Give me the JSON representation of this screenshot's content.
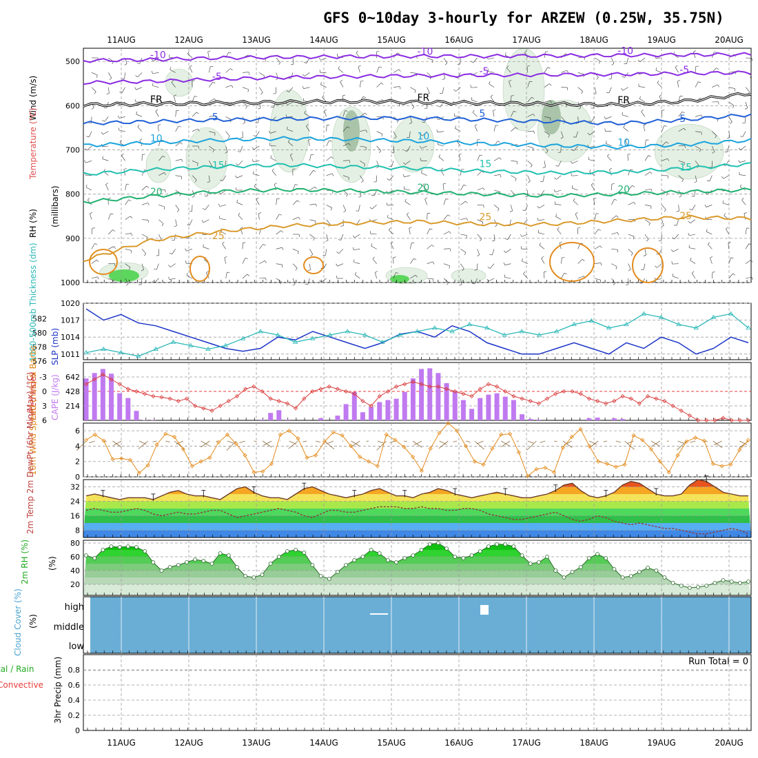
{
  "title": "GFS 0~10day 3-hourly for ARZEW (0.25W, 35.75N)",
  "date_labels": [
    "11AUG",
    "12AUG",
    "13AUG",
    "14AUG",
    "15AUG",
    "16AUG",
    "17AUG",
    "18AUG",
    "19AUG",
    "20AUG"
  ],
  "colors": {
    "isotherm_cold": "#8a2be2",
    "isotherm_mid": "#1f5fd6",
    "isotherm_warm": "#d99a2b",
    "slp": "#1a33c7",
    "thickness": "#2bb7b7",
    "cape": "#c07af0",
    "lifted_index": "#d93b3b",
    "wind": "#e38b1c",
    "rh": "#22c322",
    "cloud": "#6aaed6",
    "precip_total": "#22aa22",
    "precip_convective": "#e83b3b"
  },
  "chart_data": [
    {
      "type": "heatmap",
      "panel": "upper-air",
      "ylabel_parts": [
        "Wind (m/s)",
        "Temperature (°C)",
        "RH (%)",
        "(millibars)"
      ],
      "yticks": [
        500,
        600,
        700,
        800,
        900,
        1000
      ],
      "ylim": [
        1000,
        470
      ],
      "isotherms": [
        {
          "label": "-10",
          "pressures": [
            498,
            496,
            492,
            490,
            489,
            488,
            488,
            487,
            486,
            485,
            484
          ]
        },
        {
          "label": "-5",
          "pressures": [
            548,
            545,
            540,
            536,
            534,
            532,
            531,
            530,
            529,
            527,
            525
          ]
        },
        {
          "label": "FR",
          "pressures": [
            598,
            596,
            594,
            592,
            590,
            592,
            594,
            596,
            598,
            590,
            572
          ]
        },
        {
          "label": "5",
          "pressures": [
            640,
            636,
            632,
            630,
            628,
            628,
            632,
            636,
            640,
            632,
            620
          ]
        },
        {
          "label": "10",
          "pressures": [
            690,
            684,
            678,
            674,
            676,
            680,
            686,
            690,
            694,
            688,
            678
          ]
        },
        {
          "label": "15",
          "pressures": [
            755,
            745,
            738,
            734,
            738,
            742,
            748,
            752,
            750,
            742,
            732
          ]
        },
        {
          "label": "20",
          "pressures": [
            818,
            805,
            794,
            790,
            792,
            796,
            800,
            804,
            800,
            795,
            790
          ]
        },
        {
          "label": "25",
          "pressures": [
            950,
            905,
            885,
            872,
            866,
            862,
            868,
            868,
            860,
            852,
            855
          ]
        }
      ]
    },
    {
      "type": "line",
      "panel": "slp-thickness",
      "ylabel": "SLP (mb)",
      "ylabel2": "1000-500mb Thickness (dm)",
      "ylim": [
        1010,
        1020
      ],
      "yticks": [
        1011,
        1014,
        1017,
        1020
      ],
      "ylim2": [
        576,
        584
      ],
      "yticks2": [
        576,
        578,
        580,
        582
      ],
      "series": [
        {
          "name": "SLP (mb)",
          "values": [
            1019,
            1017,
            1018,
            1016.5,
            1016,
            1015,
            1014,
            1013,
            1012,
            1011.5,
            1012,
            1014,
            1013.5,
            1015,
            1014,
            1013,
            1012,
            1013,
            1014.5,
            1015,
            1014,
            1016,
            1015,
            1013,
            1012,
            1011,
            1011,
            1012,
            1013,
            1012,
            1011,
            1013,
            1012,
            1014,
            1013,
            1011,
            1012,
            1014,
            1013
          ]
        },
        {
          "name": "1000-500mb Thickness (dm)",
          "values": [
            577,
            577.5,
            577,
            576.5,
            577.5,
            578.5,
            578,
            577.5,
            578,
            579,
            580,
            579.5,
            578.5,
            579,
            579.5,
            580,
            579.5,
            578.5,
            579.5,
            580,
            580.5,
            580,
            581,
            580.5,
            579.5,
            580,
            579.5,
            580,
            581,
            581.5,
            580.5,
            581,
            582.5,
            582,
            581,
            580.5,
            582,
            582.5,
            580.5
          ]
        }
      ]
    },
    {
      "type": "bar",
      "panel": "cape-li",
      "ylabel": "CAPE (J/kg)",
      "ylabel2": "Lifted Index",
      "yticks": [
        214,
        428,
        642
      ],
      "yticks2": [
        -3,
        0,
        3,
        6
      ],
      "cape_values": [
        620,
        700,
        760,
        690,
        400,
        330,
        140,
        5,
        5,
        0,
        0,
        0,
        0,
        0,
        0,
        0,
        0,
        0,
        0,
        0,
        0,
        10,
        110,
        150,
        10,
        0,
        0,
        0,
        30,
        0,
        70,
        240,
        420,
        120,
        200,
        270,
        300,
        320,
        420,
        620,
        760,
        770,
        700,
        550,
        430,
        300,
        170,
        330,
        380,
        400,
        350,
        300,
        90,
        20,
        10,
        0,
        0,
        0,
        0,
        0,
        30,
        40,
        0,
        30,
        20,
        0,
        0,
        0,
        0,
        0,
        0,
        0,
        0,
        0,
        0,
        0,
        0,
        0,
        0,
        0
      ],
      "li_values": [
        -1.5,
        -2.5,
        -3.5,
        -2.5,
        -1.5,
        -0.5,
        0,
        0.5,
        1,
        1.2,
        1.5,
        2,
        1.5,
        3,
        3.5,
        4,
        3,
        2,
        1,
        -0.5,
        -1,
        0,
        1.5,
        2,
        2.5,
        3.5,
        1.5,
        0,
        -0.5,
        -1,
        -0.5,
        0,
        0.5,
        2,
        3,
        1,
        0,
        -1,
        -1.5,
        -2,
        -1.5,
        -1,
        -1,
        -0.5,
        0,
        0.5,
        1,
        -0.5,
        -1.5,
        -1,
        0,
        1,
        1.5,
        2,
        2.5,
        1.5,
        0.5,
        0,
        0,
        0.5,
        1.5,
        2,
        2.5,
        2,
        1,
        1.5,
        2.5,
        1,
        1.5,
        2,
        3,
        4,
        5,
        6,
        6,
        6,
        5.5,
        6,
        6,
        6
      ]
    },
    {
      "type": "line",
      "panel": "wind",
      "ylabel": "10m Wind Speed (m/s) & Barbs",
      "ylim": [
        0,
        7
      ],
      "yticks": [
        0,
        2,
        4,
        6
      ],
      "values": [
        4.8,
        5.5,
        4.7,
        2.3,
        2.4,
        2.2,
        0.5,
        1.5,
        4.2,
        5.6,
        5.2,
        3.6,
        1.4,
        2.0,
        2.5,
        4.5,
        5.5,
        4.3,
        2.8,
        0.6,
        0.7,
        1.7,
        5.5,
        6.0,
        5.0,
        2.5,
        2.8,
        4.6,
        5.8,
        5.4,
        4.0,
        2.6,
        2.0,
        1.4,
        5.5,
        4.8,
        3.9,
        2.6,
        0.8,
        3.7,
        5.7,
        7.0,
        6.0,
        4.0,
        2.0,
        1.6,
        3.7,
        5.5,
        5.6,
        3.2,
        0.1,
        1.0,
        1.2,
        0.6,
        3.8,
        5.2,
        6.2,
        4.0,
        2.0,
        1.7,
        1.3,
        1.6,
        5.4,
        4.8,
        3.6,
        2.0,
        0.6,
        2.8,
        4.6,
        5.1,
        4.7,
        1.7,
        1.4,
        1.6,
        3.5,
        4.8
      ]
    },
    {
      "type": "area",
      "panel": "temperature",
      "ylabel": "2m Temp 2m DewPt (6hr Min/Max) (°C)",
      "ylim": [
        4,
        36
      ],
      "yticks": [
        8,
        16,
        24,
        32
      ],
      "temp": [
        27,
        28,
        27,
        26,
        25,
        26,
        26,
        26,
        25,
        27,
        29,
        30,
        28,
        27,
        27,
        26,
        25,
        28,
        31,
        32,
        29,
        27,
        26,
        26,
        25,
        28,
        31,
        32,
        30,
        28,
        27,
        26,
        27,
        28,
        30,
        31,
        29,
        27,
        27,
        26,
        28,
        29,
        31,
        30,
        28,
        27,
        26,
        27,
        28,
        29,
        28,
        27,
        26,
        26,
        27,
        28,
        30,
        33,
        34,
        30,
        27,
        26,
        27,
        29,
        33,
        35,
        34,
        31,
        28,
        27,
        27,
        28,
        33,
        36,
        35,
        32,
        29,
        28,
        27,
        27
      ],
      "dewpt": [
        19,
        20,
        19,
        18,
        18,
        19,
        20,
        19,
        17,
        16,
        17,
        18,
        17,
        17,
        18,
        19,
        19,
        17,
        15,
        16,
        17,
        18,
        19,
        20,
        19,
        18,
        16,
        15,
        17,
        19,
        19,
        18,
        18,
        19,
        20,
        21,
        21,
        21,
        20,
        20,
        21,
        20,
        20,
        19,
        19,
        20,
        20,
        19,
        17,
        16,
        15,
        14,
        14,
        15,
        16,
        17,
        18,
        16,
        14,
        13,
        14,
        16,
        15,
        13,
        12,
        11,
        12,
        11,
        10,
        9,
        9,
        8,
        7,
        6,
        6,
        7,
        8,
        9,
        8,
        6
      ]
    },
    {
      "type": "area",
      "panel": "rh",
      "ylabel": "2m RH (%)",
      "ylim": [
        0,
        80
      ],
      "yticks": [
        20,
        40,
        60,
        80
      ],
      "values": [
        62,
        58,
        70,
        75,
        74,
        75,
        74,
        68,
        52,
        40,
        45,
        48,
        52,
        56,
        54,
        50,
        65,
        62,
        45,
        32,
        30,
        34,
        50,
        60,
        68,
        70,
        66,
        48,
        32,
        28,
        38,
        48,
        55,
        60,
        70,
        65,
        55,
        52,
        58,
        62,
        70,
        78,
        80,
        72,
        60,
        58,
        62,
        68,
        75,
        78,
        78,
        75,
        62,
        50,
        52,
        60,
        40,
        30,
        38,
        45,
        58,
        64,
        58,
        42,
        30,
        32,
        38,
        44,
        40,
        30,
        22,
        18,
        15,
        16,
        18,
        22,
        26,
        24,
        22,
        24
      ]
    },
    {
      "type": "heatmap",
      "panel": "cloud",
      "ylabel": "Cloud Cover (%)",
      "ylabels": [
        "high",
        "middle",
        "low"
      ]
    },
    {
      "type": "bar",
      "panel": "precip",
      "ylabel": "3hr Precip (mm)",
      "ylabel_total": "tal / Rain",
      "ylabel_convective": "Convective",
      "ylim": [
        0,
        1
      ],
      "yticks": [
        0,
        0.2,
        0.4,
        0.6,
        0.8
      ],
      "run_total": "Run Total = 0"
    }
  ]
}
